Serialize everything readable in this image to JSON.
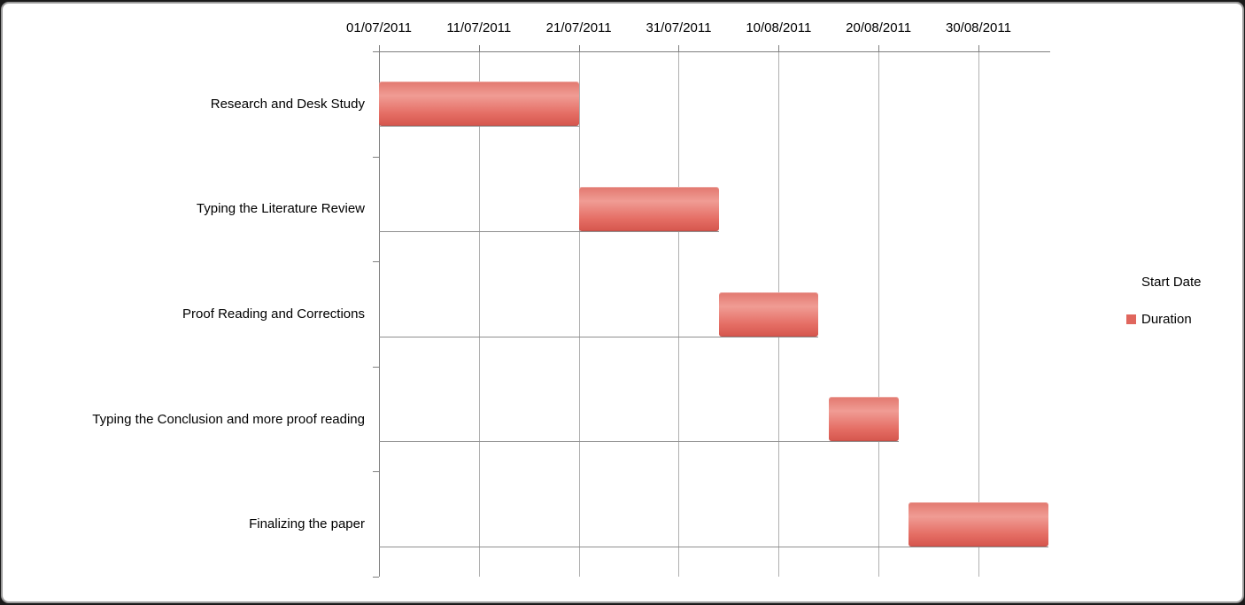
{
  "chart_data": {
    "type": "bar",
    "subtype": "gantt",
    "title": "",
    "xlabel": "",
    "ylabel": "",
    "x_tick_labels": [
      "01/07/2011",
      "11/07/2011",
      "21/07/2011",
      "31/07/2011",
      "10/08/2011",
      "20/08/2011",
      "30/08/2011"
    ],
    "tick_days": [
      0,
      10,
      20,
      30,
      40,
      50,
      60
    ],
    "axis_start_date": "01/07/2011",
    "x_range_days": [
      0,
      67
    ],
    "grid": "vertical",
    "categories": [
      "Research and Desk Study",
      "Typing the Literature Review",
      "Proof Reading and Corrections",
      "Typing the Conclusion and more proof reading",
      "Finalizing the paper"
    ],
    "series": [
      {
        "name": "Start Date",
        "visible": false
      },
      {
        "name": "Duration",
        "color": "#e0665d",
        "bars": [
          {
            "task": "Research and Desk Study",
            "start_day": 0,
            "duration_days": 20,
            "start_date": "01/07/2011",
            "end_date": "21/07/2011"
          },
          {
            "task": "Typing the Literature Review",
            "start_day": 20,
            "duration_days": 14,
            "start_date": "21/07/2011",
            "end_date": "04/08/2011"
          },
          {
            "task": "Proof Reading and Corrections",
            "start_day": 34,
            "duration_days": 10,
            "start_date": "04/08/2011",
            "end_date": "14/08/2011"
          },
          {
            "task": "Typing the Conclusion and more proof reading",
            "start_day": 45,
            "duration_days": 7,
            "start_date": "15/08/2011",
            "end_date": "22/08/2011"
          },
          {
            "task": "Finalizing the paper",
            "start_day": 53,
            "duration_days": 14,
            "start_date": "23/08/2011",
            "end_date": "06/09/2011"
          }
        ]
      }
    ],
    "legend": {
      "position": "right",
      "entries": [
        {
          "label": "Start Date",
          "swatch_color": null
        },
        {
          "label": "Duration",
          "swatch_color": "#e0665d"
        }
      ]
    },
    "colors": {
      "bar": "#e0665d",
      "gridline": "#b0b0b0",
      "axis": "#7f7f7f",
      "text": "#000000"
    }
  }
}
